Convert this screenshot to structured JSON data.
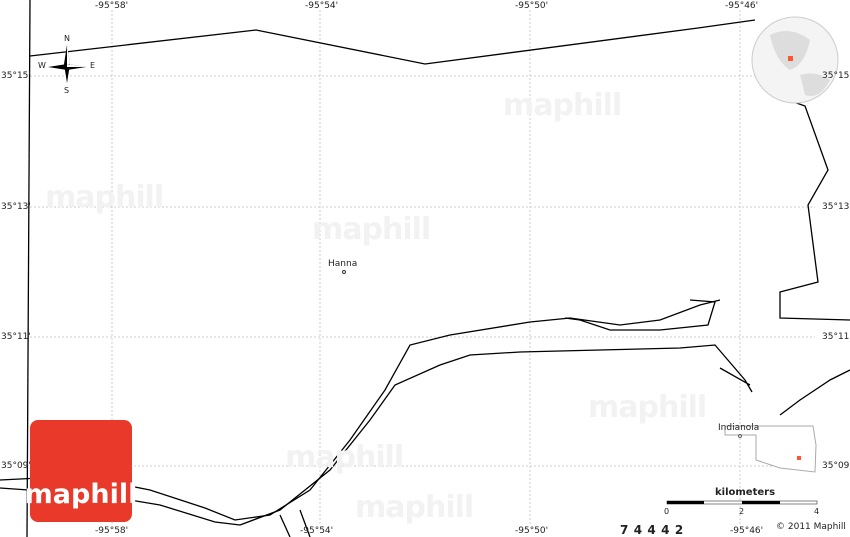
{
  "longitude_labels": [
    "-95°58'",
    "-95°54'",
    "-95°50'",
    "-95°46'"
  ],
  "latitude_labels": [
    "35°15'",
    "35°13'",
    "35°11'",
    "35°09'"
  ],
  "places": [
    {
      "name": "Hanna"
    },
    {
      "name": "Indianola"
    }
  ],
  "compass": {
    "n": "N",
    "s": "S",
    "e": "E",
    "w": "W"
  },
  "watermark": "maphill",
  "logo": "maphill",
  "scale": {
    "unit": "kilometers",
    "ticks": [
      "0",
      "2",
      "4"
    ]
  },
  "copyright": "© 2011 Maphill",
  "bottom_digits": "7  4  4  4  2",
  "colors": {
    "logo": "#e8392a",
    "marker": "#ff5533"
  }
}
